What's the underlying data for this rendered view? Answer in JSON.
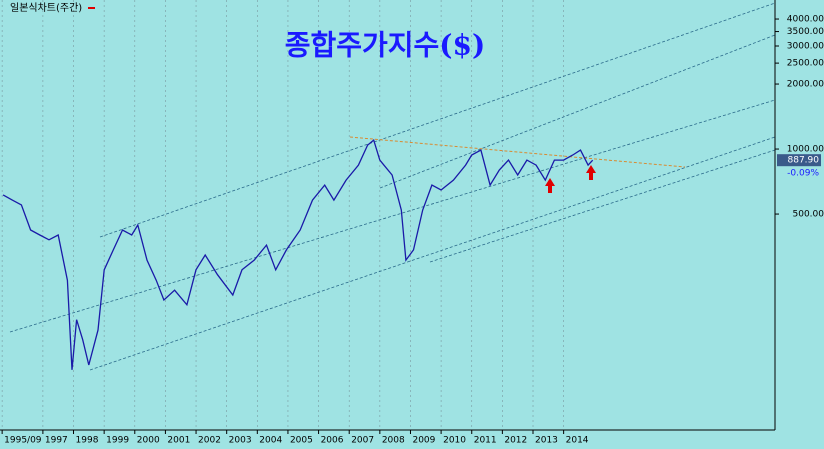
{
  "chart_data": {
    "type": "line",
    "title": "종합주가지수($)",
    "legend_label": "일본식차트(주간)",
    "x": [
      1995.7,
      1996.0,
      1996.3,
      1996.6,
      1996.9,
      1997.2,
      1997.5,
      1997.8,
      1997.95,
      1998.1,
      1998.3,
      1998.5,
      1998.8,
      1999.0,
      1999.3,
      1999.6,
      1999.9,
      2000.1,
      2000.4,
      2000.7,
      2000.95,
      2001.3,
      2001.7,
      2002.0,
      2002.3,
      2002.7,
      2003.2,
      2003.5,
      2003.9,
      2004.3,
      2004.6,
      2004.95,
      2005.4,
      2005.8,
      2006.2,
      2006.5,
      2006.9,
      2007.3,
      2007.6,
      2007.8,
      2008.0,
      2008.4,
      2008.7,
      2008.85,
      2009.1,
      2009.4,
      2009.7,
      2010.0,
      2010.4,
      2010.8,
      2011.0,
      2011.3,
      2011.6,
      2011.9,
      2012.2,
      2012.5,
      2012.8,
      2013.1,
      2013.4,
      2013.7,
      2014.0,
      2014.3,
      2014.55,
      2014.8,
      2014.95
    ],
    "series": [
      {
        "color": "#1a1aa8",
        "values": [
          613,
          580,
          551,
          422,
          400,
          380,
          400,
          247,
          95,
          162,
          131,
          100,
          145,
          276,
          341,
          422,
          400,
          445,
          306,
          247,
          200,
          222,
          190,
          276,
          323,
          262,
          211,
          276,
          306,
          359,
          276,
          341,
          422,
          580,
          681,
          580,
          718,
          843,
          1043,
          1100,
          889,
          758,
          522,
          306,
          341,
          522,
          681,
          646,
          718,
          843,
          938,
          989,
          681,
          800,
          889,
          758,
          889,
          843,
          718,
          889,
          889,
          938,
          989,
          843,
          887.9
        ]
      }
    ],
    "xlim": [
      1995.6,
      2020.9
    ],
    "xticks": [
      {
        "value": 1995.67,
        "label": "1995/09"
      },
      1997,
      1998,
      1999,
      2000,
      2001,
      2002,
      2003,
      2004,
      2005,
      2006,
      2007,
      2008,
      2009,
      2010,
      2011,
      2012,
      2013,
      2014
    ],
    "ylim": [
      50,
      4900
    ],
    "log_scale": true,
    "yticks": [
      {
        "value": 500,
        "label": "500.00"
      },
      {
        "value": 1000,
        "label": "1000.00"
      },
      {
        "value": 2000,
        "label": "2000.00"
      },
      {
        "value": 2500,
        "label": "2500.00"
      },
      {
        "value": 3000,
        "label": "3000.00"
      },
      {
        "value": 3500,
        "label": "3500.00"
      },
      {
        "value": 4000,
        "label": "4000.00"
      }
    ],
    "last_value": {
      "value": 887.9,
      "label": "887.90"
    },
    "change_label": "-0.09%",
    "grid": true
  }
}
